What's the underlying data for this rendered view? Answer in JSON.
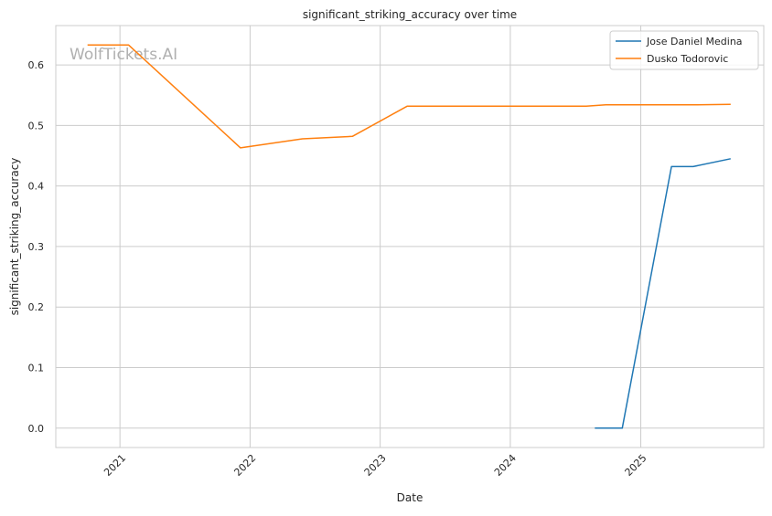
{
  "watermark": "WolfTickets.AI",
  "chart_data": {
    "type": "line",
    "title": "significant_striking_accuracy over time",
    "xlabel": "Date",
    "ylabel": "significant_striking_accuracy",
    "x_type": "date",
    "xlim": [
      "2020-07-05",
      "2025-12-12"
    ],
    "ylim": [
      -0.032,
      0.665
    ],
    "x_ticks": [
      {
        "date": "2021-01-01",
        "label": "2021"
      },
      {
        "date": "2022-01-01",
        "label": "2022"
      },
      {
        "date": "2023-01-01",
        "label": "2023"
      },
      {
        "date": "2024-01-01",
        "label": "2024"
      },
      {
        "date": "2025-01-01",
        "label": "2025"
      }
    ],
    "y_ticks": [
      {
        "value": 0.0,
        "label": "0.0"
      },
      {
        "value": 0.1,
        "label": "0.1"
      },
      {
        "value": 0.2,
        "label": "0.2"
      },
      {
        "value": 0.3,
        "label": "0.3"
      },
      {
        "value": 0.4,
        "label": "0.4"
      },
      {
        "value": 0.5,
        "label": "0.5"
      },
      {
        "value": 0.6,
        "label": "0.6"
      }
    ],
    "grid": true,
    "legend_position": "top-right",
    "series": [
      {
        "name": "Jose Daniel Medina",
        "color": "#1f77b4",
        "points": [
          {
            "x": "2024-08-25",
            "y": 0.0
          },
          {
            "x": "2024-11-10",
            "y": 0.0
          },
          {
            "x": "2025-03-28",
            "y": 0.432
          },
          {
            "x": "2025-05-28",
            "y": 0.432
          },
          {
            "x": "2025-09-10",
            "y": 0.445
          }
        ]
      },
      {
        "name": "Dusko Todorovic",
        "color": "#ff7f0e",
        "points": [
          {
            "x": "2020-10-02",
            "y": 0.633
          },
          {
            "x": "2021-01-25",
            "y": 0.633
          },
          {
            "x": "2021-12-05",
            "y": 0.463
          },
          {
            "x": "2022-05-28",
            "y": 0.478
          },
          {
            "x": "2022-10-15",
            "y": 0.482
          },
          {
            "x": "2023-03-18",
            "y": 0.532
          },
          {
            "x": "2024-08-01",
            "y": 0.532
          },
          {
            "x": "2024-09-25",
            "y": 0.534
          },
          {
            "x": "2025-05-30",
            "y": 0.534
          },
          {
            "x": "2025-09-10",
            "y": 0.535
          }
        ]
      }
    ]
  }
}
